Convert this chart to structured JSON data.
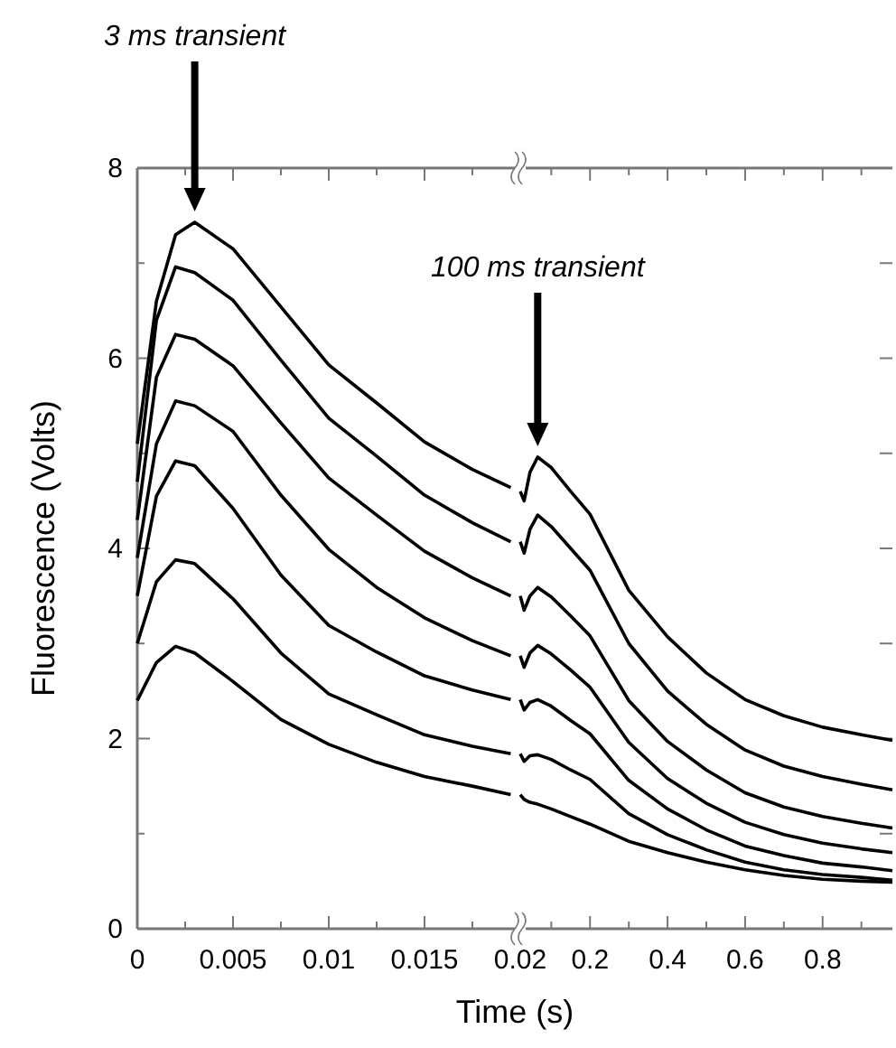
{
  "chart_data": [
    {
      "type": "line",
      "xlabel": "Time (s)",
      "ylabel": "Fluorescence (Volts)",
      "tick_labels": "xy",
      "marker": "none",
      "line_style": "solid",
      "x": [
        0,
        0.001,
        0.002,
        0.003,
        0.005,
        0.0075,
        0.01,
        0.0125,
        0.015,
        0.0175,
        0.0195
      ],
      "xlim": [
        0,
        0.02
      ],
      "xticks": [
        0,
        {
          "value": 0.0025,
          "label": null
        },
        0.005,
        {
          "value": 0.0075,
          "label": null
        },
        0.01,
        {
          "value": 0.0125,
          "label": null
        },
        0.015,
        {
          "value": 0.0175,
          "label": null
        },
        0.02
      ],
      "ylim": [
        0,
        8
      ],
      "yticks": [
        0,
        {
          "value": 1,
          "label": null
        },
        2,
        {
          "value": 3,
          "label": null
        },
        4,
        {
          "value": 5,
          "label": null
        },
        6,
        {
          "value": 7,
          "label": null
        },
        8
      ],
      "annotations": [
        "3 ms transient"
      ],
      "series": [
        {
          "color": "#000000",
          "values": [
            5.1,
            6.6,
            7.3,
            7.43,
            7.15,
            6.54,
            5.93,
            5.53,
            5.12,
            4.83,
            4.64
          ]
        },
        {
          "color": "#000000",
          "values": [
            4.7,
            6.4,
            6.96,
            6.9,
            6.61,
            5.98,
            5.37,
            4.97,
            4.56,
            4.27,
            4.07
          ]
        },
        {
          "color": "#000000",
          "values": [
            4.3,
            5.8,
            6.25,
            6.2,
            5.92,
            5.32,
            4.74,
            4.35,
            3.97,
            3.69,
            3.5
          ]
        },
        {
          "color": "#000000",
          "values": [
            3.9,
            5.1,
            5.55,
            5.5,
            5.23,
            4.56,
            3.99,
            3.59,
            3.27,
            3.03,
            2.87
          ]
        },
        {
          "color": "#000000",
          "values": [
            3.5,
            4.55,
            4.92,
            4.87,
            4.42,
            3.72,
            3.19,
            2.91,
            2.66,
            2.51,
            2.41
          ]
        },
        {
          "color": "#000000",
          "values": [
            3.0,
            3.65,
            3.88,
            3.84,
            3.47,
            2.9,
            2.47,
            2.25,
            2.04,
            1.92,
            1.84
          ]
        },
        {
          "color": "#000000",
          "values": [
            2.4,
            2.8,
            2.97,
            2.9,
            2.6,
            2.2,
            1.94,
            1.75,
            1.6,
            1.5,
            1.41
          ]
        }
      ]
    },
    {
      "type": "line",
      "tick_labels": "x",
      "marker": "none",
      "line_style": "solid",
      "x": [
        0.02,
        0.03,
        0.045,
        0.065,
        0.1,
        0.15,
        0.2,
        0.3,
        0.4,
        0.5,
        0.6,
        0.7,
        0.8,
        0.9,
        0.98
      ],
      "xlim": [
        0.02,
        0.98
      ],
      "xticks": [
        {
          "value": 0.1,
          "label": null
        },
        0.2,
        {
          "value": 0.3,
          "label": null
        },
        0.4,
        {
          "value": 0.5,
          "label": null
        },
        0.6,
        {
          "value": 0.7,
          "label": null
        },
        0.8,
        {
          "value": 0.9,
          "label": null
        }
      ],
      "ylim": [
        0,
        8
      ],
      "yticks": [
        {
          "value": 0,
          "label": null
        },
        {
          "value": 1,
          "label": null
        },
        {
          "value": 2,
          "label": null
        },
        {
          "value": 3,
          "label": null
        },
        {
          "value": 4,
          "label": null
        },
        {
          "value": 5,
          "label": null
        },
        {
          "value": 6,
          "label": null
        },
        {
          "value": 7,
          "label": null
        },
        {
          "value": 8,
          "label": null
        }
      ],
      "annotations": [
        "100 ms transient"
      ],
      "series": [
        {
          "color": "#000000",
          "values": [
            4.6,
            4.5,
            4.8,
            4.96,
            4.85,
            4.6,
            4.36,
            3.56,
            3.07,
            2.69,
            2.41,
            2.24,
            2.12,
            2.04,
            1.98
          ]
        },
        {
          "color": "#000000",
          "values": [
            4.07,
            3.95,
            4.2,
            4.35,
            4.23,
            4.0,
            3.77,
            3.0,
            2.5,
            2.15,
            1.88,
            1.71,
            1.6,
            1.52,
            1.46
          ]
        },
        {
          "color": "#000000",
          "values": [
            3.5,
            3.35,
            3.5,
            3.59,
            3.49,
            3.29,
            3.08,
            2.4,
            1.97,
            1.67,
            1.43,
            1.28,
            1.18,
            1.11,
            1.06
          ]
        },
        {
          "color": "#000000",
          "values": [
            2.87,
            2.75,
            2.9,
            2.98,
            2.89,
            2.72,
            2.54,
            1.96,
            1.58,
            1.32,
            1.12,
            0.99,
            0.9,
            0.84,
            0.8
          ]
        },
        {
          "color": "#000000",
          "values": [
            2.41,
            2.3,
            2.38,
            2.41,
            2.34,
            2.19,
            2.05,
            1.56,
            1.26,
            1.04,
            0.87,
            0.77,
            0.69,
            0.65,
            0.61
          ]
        },
        {
          "color": "#000000",
          "values": [
            1.84,
            1.76,
            1.82,
            1.83,
            1.78,
            1.67,
            1.57,
            1.21,
            0.99,
            0.83,
            0.7,
            0.62,
            0.57,
            0.54,
            0.51
          ]
        },
        {
          "color": "#000000",
          "values": [
            1.41,
            1.36,
            1.33,
            1.31,
            1.26,
            1.18,
            1.1,
            0.92,
            0.8,
            0.7,
            0.62,
            0.56,
            0.52,
            0.5,
            0.49
          ]
        }
      ]
    }
  ]
}
